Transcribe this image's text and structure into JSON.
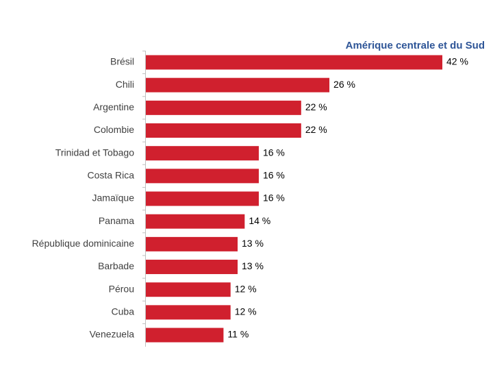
{
  "chart_data": {
    "type": "bar",
    "orientation": "horizontal",
    "title": "Amérique centrale et du Sud",
    "categories": [
      "Brésil",
      "Chili",
      "Argentine",
      "Colombie",
      "Trinidad et Tobago",
      "Costa Rica",
      "Jamaïque",
      "Panama",
      "République dominicaine",
      "Barbade",
      "Pérou",
      "Cuba",
      "Venezuela"
    ],
    "values": [
      42,
      26,
      22,
      22,
      16,
      16,
      16,
      14,
      13,
      13,
      12,
      12,
      11
    ],
    "value_labels": [
      "42 %",
      "26 %",
      "22 %",
      "22 %",
      "16 %",
      "16 %",
      "16 %",
      "14 %",
      "13 %",
      "13 %",
      "12 %",
      "12 %",
      "11 %"
    ],
    "color": "#d0202e"
  }
}
